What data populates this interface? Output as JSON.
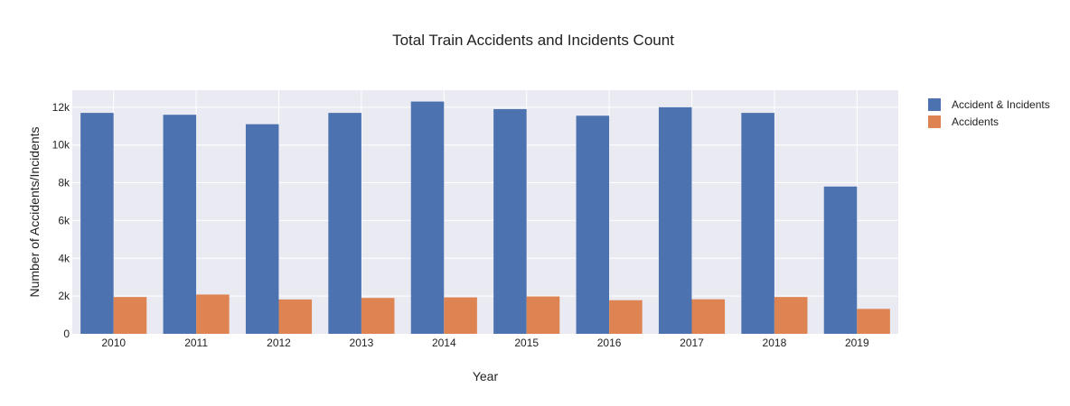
{
  "chart_data": {
    "type": "bar",
    "title": "Total Train Accidents and Incidents Count",
    "xlabel": "Year",
    "ylabel": "Number of Accidents/Incidents",
    "categories": [
      "2010",
      "2011",
      "2012",
      "2013",
      "2014",
      "2015",
      "2016",
      "2017",
      "2018",
      "2019"
    ],
    "series": [
      {
        "name": "Accident & Incidents",
        "color": "#4c72b0",
        "values": [
          11700,
          11600,
          11100,
          11700,
          12300,
          11900,
          11550,
          12000,
          11700,
          7800
        ]
      },
      {
        "name": "Accidents",
        "color": "#dd8452",
        "values": [
          1950,
          2080,
          1820,
          1900,
          1930,
          1980,
          1780,
          1830,
          1950,
          1320
        ]
      }
    ],
    "ylim": [
      0,
      12900
    ],
    "yticks": [
      0,
      2000,
      4000,
      6000,
      8000,
      10000,
      12000
    ],
    "ytick_labels": [
      "0",
      "2k",
      "4k",
      "6k",
      "8k",
      "10k",
      "12k"
    ],
    "grid": true,
    "plot_background": "#eaeaf2",
    "legend_position": "top-right"
  }
}
